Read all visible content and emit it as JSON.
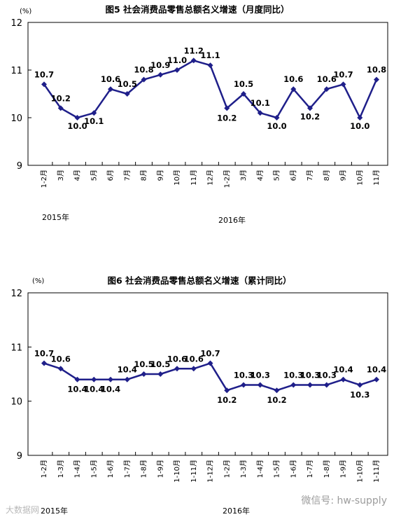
{
  "chart_data": [
    {
      "type": "line",
      "title": "图5 社会消费品零售总额名义增速（月度同比）",
      "unit_label": "(%)",
      "ylim": [
        9,
        12
      ],
      "yticks": [
        "9",
        "10",
        "11",
        "12"
      ],
      "grid": false,
      "line_color": "#1f1f8a",
      "categories": [
        "1-2月",
        "3月",
        "4月",
        "5月",
        "6月",
        "7月",
        "8月",
        "9月",
        "10月",
        "11月",
        "12月",
        "1-2月",
        "3月",
        "4月",
        "5月",
        "6月",
        "7月",
        "8月",
        "9月",
        "10月",
        "11月"
      ],
      "data_labels": [
        "10.7",
        "10.2",
        "10.0",
        "10.1",
        "10.6",
        "10.5",
        "10.8",
        "10.9",
        "11.0",
        "11.2",
        "11.1",
        "10.2",
        "10.5",
        "10.1",
        "10.0",
        "10.6",
        "10.2",
        "10.6",
        "10.7",
        "10.0",
        "10.8"
      ],
      "series": [
        {
          "values": [
            10.7,
            10.2,
            10.0,
            10.1,
            10.6,
            10.5,
            10.8,
            10.9,
            11.0,
            11.2,
            11.1,
            10.2,
            10.5,
            10.1,
            10.0,
            10.6,
            10.2,
            10.6,
            10.7,
            10.0,
            10.8
          ]
        }
      ],
      "year_labels": [
        "2015年",
        "2016年"
      ]
    },
    {
      "type": "line",
      "title": "图6 社会消费品零售总额名义增速（累计同比）",
      "unit_label": "(%)",
      "ylim": [
        9,
        12
      ],
      "yticks": [
        "9",
        "10",
        "11",
        "12"
      ],
      "grid": false,
      "line_color": "#1f1f8a",
      "categories": [
        "1-2月",
        "1-3月",
        "1-4月",
        "1-5月",
        "1-6月",
        "1-7月",
        "1-8月",
        "1-9月",
        "1-10月",
        "1-11月",
        "1-12月",
        "1-2月",
        "1-3月",
        "1-4月",
        "1-5月",
        "1-6月",
        "1-7月",
        "1-8月",
        "1-9月",
        "1-10月",
        "1-11月"
      ],
      "data_labels": [
        "10.7",
        "10.6",
        "10.4",
        "10.4",
        "10.4",
        "10.4",
        "10.5",
        "10.5",
        "10.6",
        "10.6",
        "10.7",
        "10.2",
        "10.3",
        "10.3",
        "10.2",
        "10.3",
        "10.3",
        "10.3",
        "10.4",
        "10.3",
        "10.4"
      ],
      "series": [
        {
          "values": [
            10.7,
            10.6,
            10.4,
            10.4,
            10.4,
            10.4,
            10.5,
            10.5,
            10.6,
            10.6,
            10.7,
            10.2,
            10.3,
            10.3,
            10.2,
            10.3,
            10.3,
            10.3,
            10.4,
            10.3,
            10.4
          ]
        }
      ],
      "year_labels": [
        "2015年",
        "2016年"
      ]
    }
  ],
  "watermarks": {
    "left": "大数据网",
    "right": "微信号: hw-supply"
  }
}
